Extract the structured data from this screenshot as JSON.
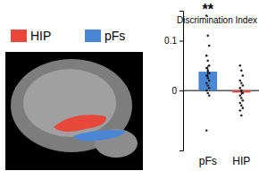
{
  "chart_data": {
    "type": "bar",
    "y_label": "Discrimination Index",
    "categories": [
      "pFs",
      "HIP"
    ],
    "values": [
      0.038,
      -0.004
    ],
    "errors": [
      0.012,
      0.005
    ],
    "colors": [
      "#4a86d4",
      "#e8473b"
    ],
    "points": [
      [
        0.15,
        0.11,
        0.09,
        0.07,
        0.06,
        0.05,
        0.045,
        0.04,
        0.035,
        0.03,
        0.025,
        0.02,
        0.015,
        0.01,
        0.005,
        0.0,
        -0.005,
        -0.01,
        -0.08
      ],
      [
        0.05,
        0.04,
        0.03,
        0.02,
        0.015,
        0.01,
        0.005,
        0.0,
        -0.005,
        -0.01,
        -0.015,
        -0.02,
        -0.025,
        -0.03,
        -0.035,
        -0.04,
        -0.05
      ]
    ],
    "annotations": [
      {
        "category": 0,
        "text": "**"
      }
    ],
    "ylim": [
      -0.12,
      0.16
    ],
    "yticks": [
      0,
      0.1
    ]
  },
  "figure": {
    "legend": [
      {
        "name": "HIP",
        "color": "#e8473b"
      },
      {
        "name": "pFs",
        "color": "#4a86d4"
      }
    ]
  }
}
